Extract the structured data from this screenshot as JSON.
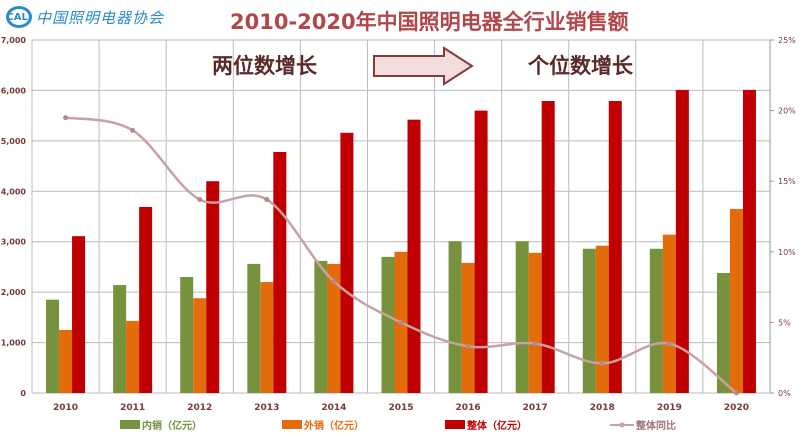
{
  "logo": {
    "mark": "CALI",
    "text": "中国照明电器协会"
  },
  "annotations": {
    "left": "两位数增长",
    "right": "个位数增长",
    "arrow": "right-arrow-icon"
  },
  "chart_data": {
    "type": "bar",
    "title": "2010-2020年中国照明电器全行业销售额",
    "categories": [
      "2010",
      "2011",
      "2012",
      "2013",
      "2014",
      "2015",
      "2016",
      "2017",
      "2018",
      "2019",
      "2020"
    ],
    "ylim": [
      0,
      7000
    ],
    "yticks": [
      "0",
      "1,000",
      "2,000",
      "3,000",
      "4,000",
      "5,000",
      "6,000",
      "7,000"
    ],
    "y2lim": [
      0,
      25
    ],
    "y2ticks": [
      "0%",
      "5%",
      "10%",
      "15%",
      "20%",
      "25%"
    ],
    "grid": true,
    "legend": "bottom",
    "series": [
      {
        "name": "内销（亿元）",
        "type": "bar",
        "color": "#76923c",
        "values": [
          1850,
          2140,
          2300,
          2560,
          2620,
          2700,
          3010,
          3010,
          2860,
          2860,
          2380
        ]
      },
      {
        "name": "外销（亿元）",
        "type": "bar",
        "color": "#e36c0a",
        "values": [
          1250,
          1430,
          1880,
          2200,
          2560,
          2800,
          2580,
          2780,
          2920,
          3140,
          3650
        ]
      },
      {
        "name": "整体（亿元）",
        "type": "bar",
        "color": "#c00000",
        "values": [
          3110,
          3690,
          4200,
          4780,
          5160,
          5420,
          5600,
          5790,
          5790,
          6010,
          6010
        ]
      },
      {
        "name": "整体同比",
        "type": "line",
        "axis": "right",
        "unit": "%",
        "color": "#c9a0a3",
        "values": [
          19.5,
          18.6,
          13.7,
          13.7,
          7.9,
          5.0,
          3.3,
          3.5,
          2.1,
          3.5,
          0
        ]
      }
    ]
  }
}
